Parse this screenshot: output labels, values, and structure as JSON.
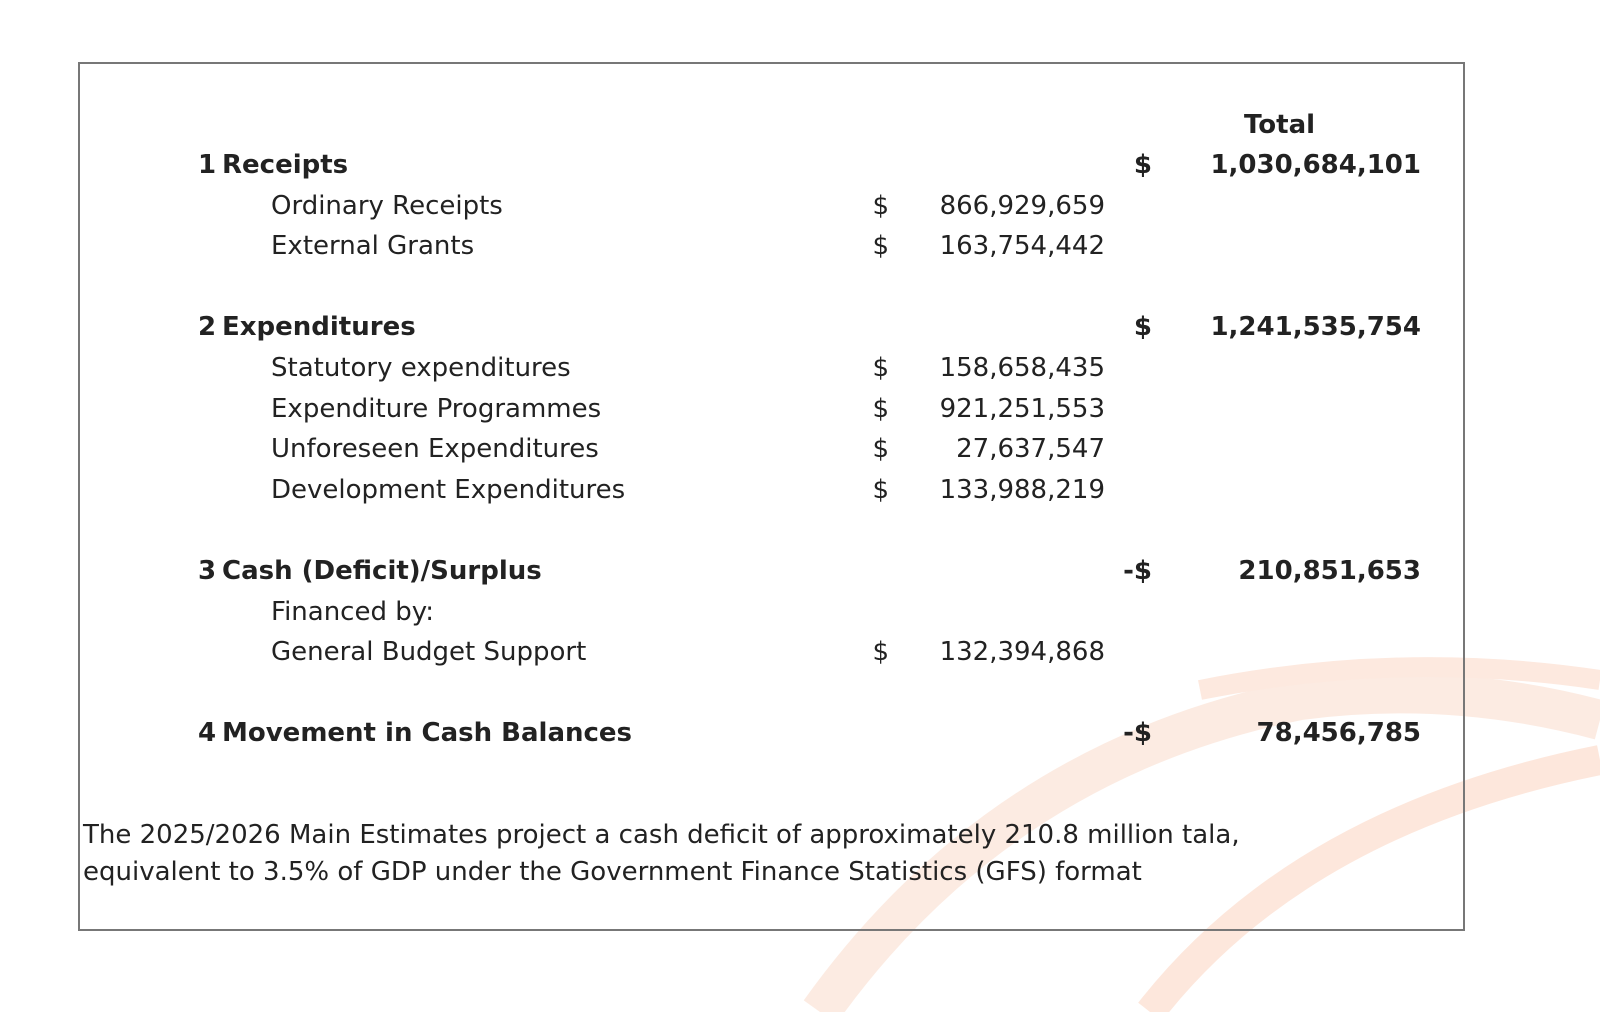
{
  "table": {
    "header": "Total",
    "sections": [
      {
        "number": "1",
        "title": "Receipts",
        "currency": "$",
        "total": "1,030,684,101",
        "items": [
          {
            "label": "Ordinary Receipts",
            "currency": "$",
            "amount": "866,929,659"
          },
          {
            "label": "External Grants",
            "currency": "$",
            "amount": "163,754,442"
          }
        ]
      },
      {
        "number": "2",
        "title": "Expenditures",
        "currency": "$",
        "total": "1,241,535,754",
        "items": [
          {
            "label": "Statutory expenditures",
            "currency": "$",
            "amount": "158,658,435"
          },
          {
            "label": "Expenditure Programmes",
            "currency": "$",
            "amount": "921,251,553"
          },
          {
            "label": "Unforeseen Expenditures",
            "currency": "$",
            "amount": "27,637,547"
          },
          {
            "label": "Development Expenditures",
            "currency": "$",
            "amount": "133,988,219"
          }
        ]
      },
      {
        "number": "3",
        "title": "Cash (Deficit)/Surplus",
        "currency": "-$",
        "total": "210,851,653",
        "items": [
          {
            "label": "Financed by:"
          },
          {
            "label": "General Budget Support",
            "currency": "$",
            "amount": "132,394,868"
          }
        ]
      },
      {
        "number": "4",
        "title": "Movement in Cash Balances",
        "currency": "-$",
        "total": "78,456,785",
        "items": []
      }
    ]
  },
  "note": {
    "lines": [
      "The 2025/2026 Main Estimates project a cash deficit of approximately 210.8 million tala,",
      "equivalent to 3.5% of GDP under the Government Finance Statistics (GFS) format"
    ]
  }
}
